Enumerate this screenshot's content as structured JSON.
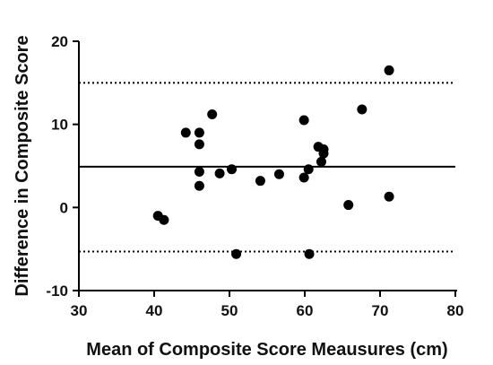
{
  "chart_data": {
    "type": "scatter",
    "xlabel": "Mean of Composite Score Meausures (cm)",
    "ylabel": "Difference in Composite Score",
    "xlim": [
      30,
      80
    ],
    "ylim": [
      -10,
      20
    ],
    "x_ticks": [
      30,
      40,
      50,
      60,
      70,
      80
    ],
    "y_ticks": [
      -10,
      0,
      10,
      20
    ],
    "grid": false,
    "reference_lines": {
      "mean_difference": 4.9,
      "upper_limit": 15.0,
      "lower_limit": -5.3
    },
    "points": [
      {
        "x": 40.5,
        "y": -1.0
      },
      {
        "x": 41.3,
        "y": -1.5
      },
      {
        "x": 44.2,
        "y": 9.0
      },
      {
        "x": 46.0,
        "y": 9.0
      },
      {
        "x": 46.0,
        "y": 7.6
      },
      {
        "x": 46.0,
        "y": 4.3
      },
      {
        "x": 46.0,
        "y": 2.6
      },
      {
        "x": 47.7,
        "y": 11.2
      },
      {
        "x": 48.7,
        "y": 4.1
      },
      {
        "x": 50.3,
        "y": 4.6
      },
      {
        "x": 50.9,
        "y": -5.6
      },
      {
        "x": 54.1,
        "y": 3.2
      },
      {
        "x": 56.6,
        "y": 4.0
      },
      {
        "x": 59.9,
        "y": 10.5
      },
      {
        "x": 59.9,
        "y": 3.6
      },
      {
        "x": 60.5,
        "y": 4.6
      },
      {
        "x": 60.6,
        "y": -5.6
      },
      {
        "x": 61.8,
        "y": 7.3
      },
      {
        "x": 62.5,
        "y": 7.0
      },
      {
        "x": 62.5,
        "y": 6.5
      },
      {
        "x": 62.2,
        "y": 5.5
      },
      {
        "x": 65.8,
        "y": 0.3
      },
      {
        "x": 67.6,
        "y": 11.8
      },
      {
        "x": 71.2,
        "y": 16.5
      },
      {
        "x": 71.2,
        "y": 1.3
      }
    ]
  },
  "colors": {
    "points": "#000000",
    "lines": "#000000"
  }
}
